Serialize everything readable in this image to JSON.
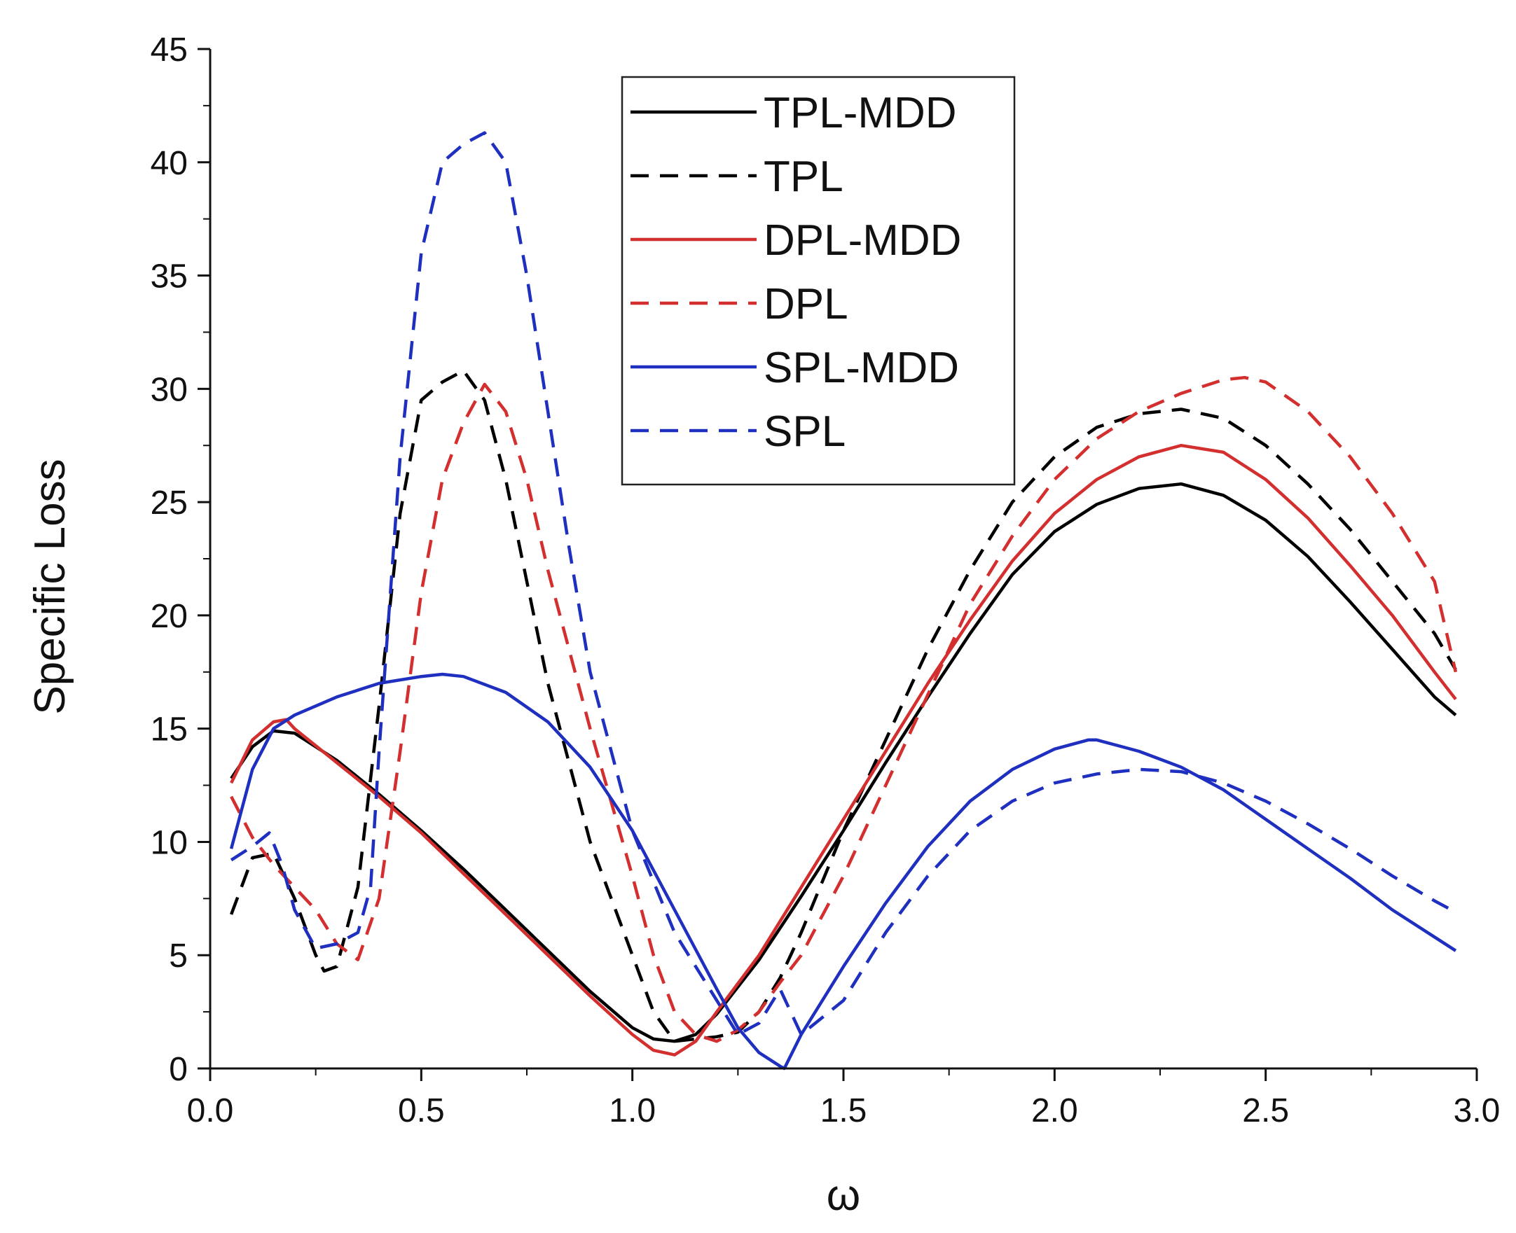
{
  "chart_data": {
    "type": "line",
    "title": "",
    "xlabel": "ω",
    "ylabel": "Specific Loss",
    "xlim": [
      0.0,
      3.0
    ],
    "ylim": [
      0,
      45
    ],
    "xticks": [
      0.0,
      0.5,
      1.0,
      1.5,
      2.0,
      2.5,
      3.0
    ],
    "xtick_labels": [
      "0.0",
      "0.5",
      "1.0",
      "1.5",
      "2.0",
      "2.5",
      "3.0"
    ],
    "yticks": [
      0,
      5,
      10,
      15,
      20,
      25,
      30,
      35,
      40,
      45
    ],
    "ytick_labels": [
      "0",
      "5",
      "10",
      "15",
      "20",
      "25",
      "30",
      "35",
      "40",
      "45"
    ],
    "grid": false,
    "legend_position": "top-center",
    "series": [
      {
        "name": "TPL-MDD",
        "color": "#000000",
        "dash": "solid",
        "x": [
          0.05,
          0.1,
          0.15,
          0.2,
          0.3,
          0.4,
          0.5,
          0.6,
          0.7,
          0.8,
          0.9,
          1.0,
          1.05,
          1.1,
          1.15,
          1.2,
          1.3,
          1.4,
          1.5,
          1.6,
          1.7,
          1.8,
          1.9,
          2.0,
          2.1,
          2.2,
          2.3,
          2.4,
          2.5,
          2.6,
          2.7,
          2.8,
          2.9,
          2.95
        ],
        "y": [
          12.8,
          14.2,
          14.9,
          14.8,
          13.6,
          12.1,
          10.5,
          8.8,
          7.0,
          5.2,
          3.4,
          1.8,
          1.3,
          1.2,
          1.5,
          2.4,
          4.8,
          7.6,
          10.5,
          13.5,
          16.4,
          19.2,
          21.8,
          23.7,
          24.9,
          25.6,
          25.8,
          25.3,
          24.2,
          22.6,
          20.6,
          18.5,
          16.4,
          15.6
        ]
      },
      {
        "name": "TPL",
        "color": "#000000",
        "dash": "dashed",
        "x": [
          0.05,
          0.1,
          0.15,
          0.2,
          0.25,
          0.27,
          0.3,
          0.35,
          0.4,
          0.45,
          0.5,
          0.55,
          0.6,
          0.65,
          0.7,
          0.75,
          0.8,
          0.9,
          1.0,
          1.05,
          1.1,
          1.15,
          1.2,
          1.25,
          1.3,
          1.35,
          1.4,
          1.5,
          1.6,
          1.7,
          1.8,
          1.9,
          2.0,
          2.1,
          2.2,
          2.3,
          2.4,
          2.5,
          2.6,
          2.7,
          2.8,
          2.9,
          2.95
        ],
        "y": [
          6.8,
          9.3,
          9.5,
          7.5,
          5.0,
          4.3,
          4.5,
          8.0,
          16.0,
          24.5,
          29.5,
          30.3,
          30.8,
          29.5,
          26.0,
          21.5,
          17.0,
          10.0,
          5.0,
          2.5,
          1.2,
          1.3,
          1.4,
          1.6,
          2.5,
          4.0,
          6.0,
          10.5,
          14.5,
          18.5,
          22.0,
          25.0,
          27.0,
          28.3,
          28.9,
          29.1,
          28.7,
          27.5,
          25.8,
          23.8,
          21.5,
          19.2,
          17.6
        ]
      },
      {
        "name": "DPL-MDD",
        "color": "#d32f2f",
        "dash": "solid",
        "x": [
          0.05,
          0.1,
          0.15,
          0.18,
          0.2,
          0.3,
          0.4,
          0.5,
          0.6,
          0.7,
          0.8,
          0.9,
          1.0,
          1.05,
          1.1,
          1.15,
          1.2,
          1.3,
          1.4,
          1.5,
          1.6,
          1.7,
          1.8,
          1.9,
          2.0,
          2.1,
          2.2,
          2.3,
          2.4,
          2.5,
          2.6,
          2.7,
          2.8,
          2.9,
          2.95
        ],
        "y": [
          12.6,
          14.5,
          15.3,
          15.4,
          15.0,
          13.5,
          12.0,
          10.4,
          8.6,
          6.8,
          5.0,
          3.2,
          1.5,
          0.8,
          0.6,
          1.2,
          2.5,
          5.0,
          8.0,
          11.0,
          14.0,
          17.0,
          19.8,
          22.4,
          24.5,
          26.0,
          27.0,
          27.5,
          27.2,
          26.0,
          24.3,
          22.2,
          20.0,
          17.5,
          16.3
        ]
      },
      {
        "name": "DPL",
        "color": "#d32f2f",
        "dash": "dashed",
        "x": [
          0.05,
          0.1,
          0.15,
          0.2,
          0.25,
          0.3,
          0.35,
          0.4,
          0.45,
          0.5,
          0.55,
          0.6,
          0.65,
          0.7,
          0.75,
          0.8,
          0.9,
          1.0,
          1.05,
          1.1,
          1.15,
          1.2,
          1.25,
          1.3,
          1.35,
          1.4,
          1.5,
          1.6,
          1.7,
          1.8,
          1.9,
          2.0,
          2.1,
          2.2,
          2.3,
          2.4,
          2.45,
          2.5,
          2.6,
          2.7,
          2.8,
          2.9,
          2.95
        ],
        "y": [
          12.0,
          10.2,
          9.0,
          8.0,
          7.0,
          5.5,
          4.8,
          7.5,
          14.0,
          21.0,
          26.0,
          28.5,
          30.2,
          29.0,
          26.0,
          22.0,
          15.0,
          8.5,
          5.0,
          2.5,
          1.5,
          1.2,
          1.7,
          2.5,
          3.8,
          5.0,
          8.5,
          12.5,
          16.5,
          20.5,
          23.5,
          26.0,
          27.8,
          29.0,
          29.8,
          30.4,
          30.5,
          30.3,
          29.0,
          27.0,
          24.5,
          21.5,
          17.5
        ]
      },
      {
        "name": "SPL-MDD",
        "color": "#1f2fbf",
        "dash": "solid",
        "x": [
          0.05,
          0.1,
          0.15,
          0.2,
          0.3,
          0.4,
          0.5,
          0.55,
          0.6,
          0.7,
          0.8,
          0.9,
          1.0,
          1.1,
          1.2,
          1.25,
          1.3,
          1.35,
          1.36,
          1.4,
          1.5,
          1.6,
          1.7,
          1.8,
          1.9,
          2.0,
          2.08,
          2.1,
          2.2,
          2.3,
          2.4,
          2.5,
          2.6,
          2.7,
          2.8,
          2.9,
          2.95
        ],
        "y": [
          9.7,
          13.2,
          15.0,
          15.6,
          16.4,
          17.0,
          17.3,
          17.4,
          17.3,
          16.6,
          15.3,
          13.3,
          10.5,
          7.0,
          3.5,
          1.8,
          0.7,
          0.1,
          0.0,
          1.5,
          4.5,
          7.3,
          9.8,
          11.8,
          13.2,
          14.1,
          14.5,
          14.5,
          14.0,
          13.3,
          12.3,
          11.0,
          9.7,
          8.4,
          7.0,
          5.8,
          5.2
        ]
      },
      {
        "name": "SPL",
        "color": "#1f2fbf",
        "dash": "dashed",
        "x": [
          0.05,
          0.1,
          0.14,
          0.17,
          0.2,
          0.25,
          0.3,
          0.35,
          0.38,
          0.4,
          0.45,
          0.5,
          0.55,
          0.6,
          0.65,
          0.7,
          0.75,
          0.8,
          0.85,
          0.9,
          1.0,
          1.1,
          1.2,
          1.25,
          1.3,
          1.35,
          1.4,
          1.5,
          1.6,
          1.7,
          1.8,
          1.9,
          2.0,
          2.1,
          2.2,
          2.3,
          2.4,
          2.5,
          2.6,
          2.7,
          2.8,
          2.9,
          2.95
        ],
        "y": [
          9.2,
          9.8,
          10.4,
          9.0,
          7.0,
          5.3,
          5.5,
          6.0,
          8.0,
          14.0,
          27.0,
          36.0,
          40.0,
          40.8,
          41.3,
          40.0,
          35.0,
          29.0,
          23.0,
          17.5,
          10.5,
          6.0,
          3.0,
          1.5,
          2.0,
          3.5,
          1.5,
          3.0,
          6.0,
          8.5,
          10.5,
          11.8,
          12.6,
          13.0,
          13.2,
          13.1,
          12.6,
          11.8,
          10.8,
          9.7,
          8.5,
          7.4,
          6.9
        ]
      }
    ]
  }
}
